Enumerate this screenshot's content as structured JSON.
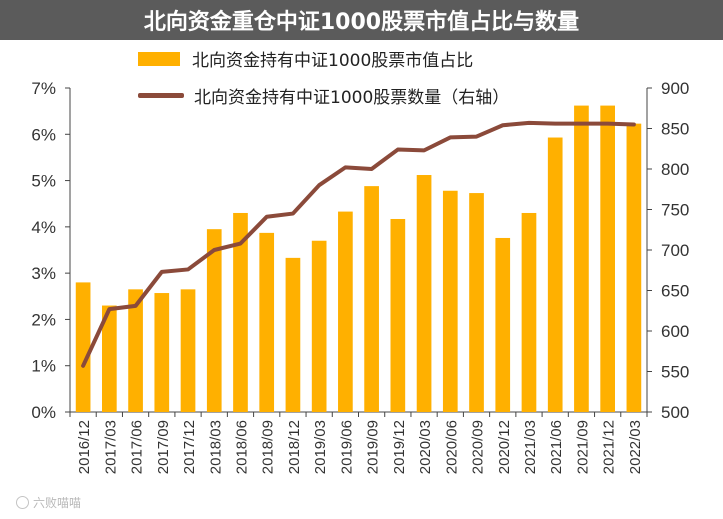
{
  "title": "北向资金重仓中证1000股票市值占比与数量",
  "colors": {
    "bar": "#FFB000",
    "line": "#8B4A3A",
    "title_bg": "#5B5B5B",
    "axis": "#444444"
  },
  "watermark": "六败喵喵",
  "chart_data": {
    "type": "bar+line",
    "categories": [
      "2016/12",
      "2017/03",
      "2017/06",
      "2017/09",
      "2017/12",
      "2018/03",
      "2018/06",
      "2018/09",
      "2018/12",
      "2019/03",
      "2019/06",
      "2019/09",
      "2019/12",
      "2020/03",
      "2020/06",
      "2020/09",
      "2020/12",
      "2021/03",
      "2021/06",
      "2021/09",
      "2021/12",
      "2022/03"
    ],
    "series": [
      {
        "name": "北向资金持有中证1000股票市值占比",
        "type": "bar",
        "axis": "left",
        "values": [
          2.8,
          2.3,
          2.65,
          2.57,
          2.65,
          3.95,
          4.3,
          3.87,
          3.33,
          3.7,
          4.33,
          4.88,
          4.17,
          5.12,
          4.78,
          4.73,
          3.76,
          4.3,
          5.93,
          6.62,
          6.62,
          6.23
        ]
      },
      {
        "name": "北向资金持有中证1000股票数量（右轴）",
        "type": "line",
        "axis": "right",
        "values": [
          557,
          627,
          631,
          673,
          676,
          700,
          708,
          741,
          745,
          780,
          802,
          800,
          824,
          823,
          839,
          840,
          854,
          857,
          856,
          856,
          856,
          855
        ]
      }
    ],
    "left_axis": {
      "min": 0,
      "max": 7,
      "ticks": [
        0,
        1,
        2,
        3,
        4,
        5,
        6,
        7
      ],
      "tick_labels": [
        "0%",
        "1%",
        "2%",
        "3%",
        "4%",
        "5%",
        "6%",
        "7%"
      ]
    },
    "right_axis": {
      "min": 500,
      "max": 900,
      "ticks": [
        500,
        550,
        600,
        650,
        700,
        750,
        800,
        850,
        900
      ],
      "tick_labels": [
        "500",
        "550",
        "600",
        "650",
        "700",
        "750",
        "800",
        "850",
        "900"
      ]
    },
    "legend_position": "top-left",
    "grid": false
  }
}
